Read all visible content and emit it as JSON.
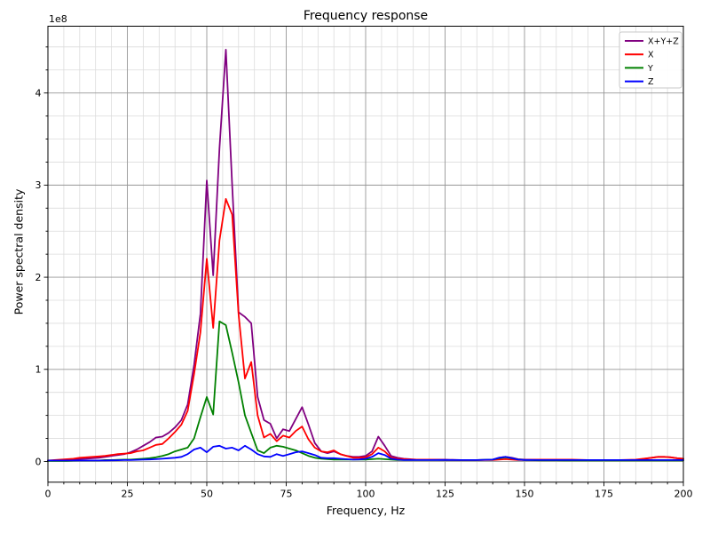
{
  "figure": {
    "background": "#ffffff",
    "text_color": "#000000",
    "spine_color": "#000000",
    "grid_major_color": "#969696",
    "grid_minor_color": "#dcdcdc"
  },
  "chart_data": {
    "type": "line",
    "title": "Frequency response",
    "xlabel": "Frequency, Hz",
    "ylabel": "Power spectral density",
    "offset_label": "1e8",
    "value_scale": 100000000,
    "xlim": [
      0,
      200
    ],
    "ylim_scaled": [
      -0.225,
      4.725
    ],
    "xticks": [
      0,
      25,
      50,
      75,
      100,
      125,
      150,
      175,
      200
    ],
    "yticks": [
      0,
      1,
      2,
      3,
      4
    ],
    "x_minor_step": 5,
    "y_minor_step": 0.25,
    "grid": true,
    "legend_position": "upper right",
    "x": [
      0,
      2,
      4,
      6,
      8,
      10,
      12,
      14,
      16,
      18,
      20,
      22,
      24,
      26,
      28,
      30,
      32,
      34,
      36,
      38,
      40,
      42,
      44,
      46,
      48,
      50,
      52,
      54,
      56,
      58,
      60,
      62,
      64,
      66,
      68,
      70,
      72,
      74,
      76,
      78,
      80,
      82,
      84,
      86,
      88,
      90,
      92,
      94,
      96,
      98,
      100,
      102,
      104,
      106,
      108,
      110,
      112,
      114,
      116,
      118,
      120,
      125,
      130,
      135,
      140,
      142,
      144,
      146,
      148,
      150,
      155,
      160,
      165,
      170,
      175,
      180,
      185,
      190,
      192,
      194,
      196,
      198,
      200
    ],
    "series": [
      {
        "name": "X+Y+Z",
        "color": "#800080",
        "values_1e8": [
          0.01,
          0.01,
          0.012,
          0.015,
          0.02,
          0.028,
          0.03,
          0.035,
          0.04,
          0.05,
          0.06,
          0.07,
          0.08,
          0.1,
          0.13,
          0.17,
          0.21,
          0.26,
          0.27,
          0.31,
          0.37,
          0.45,
          0.62,
          1.05,
          1.6,
          3.05,
          2.02,
          3.4,
          4.47,
          3.0,
          1.62,
          1.57,
          1.5,
          0.7,
          0.45,
          0.41,
          0.25,
          0.35,
          0.33,
          0.46,
          0.59,
          0.4,
          0.2,
          0.11,
          0.09,
          0.11,
          0.08,
          0.06,
          0.05,
          0.05,
          0.06,
          0.11,
          0.27,
          0.17,
          0.06,
          0.04,
          0.03,
          0.025,
          0.02,
          0.02,
          0.02,
          0.02,
          0.015,
          0.015,
          0.02,
          0.04,
          0.05,
          0.04,
          0.025,
          0.02,
          0.02,
          0.02,
          0.015,
          0.015,
          0.015,
          0.015,
          0.015,
          0.04,
          0.05,
          0.05,
          0.045,
          0.035,
          0.03
        ]
      },
      {
        "name": "X",
        "color": "#ff0000",
        "values_1e8": [
          0.01,
          0.015,
          0.02,
          0.025,
          0.03,
          0.04,
          0.045,
          0.05,
          0.055,
          0.06,
          0.07,
          0.08,
          0.085,
          0.09,
          0.11,
          0.12,
          0.15,
          0.18,
          0.19,
          0.25,
          0.32,
          0.4,
          0.55,
          0.95,
          1.4,
          2.2,
          1.45,
          2.4,
          2.85,
          2.68,
          1.6,
          0.9,
          1.08,
          0.5,
          0.26,
          0.3,
          0.22,
          0.28,
          0.26,
          0.33,
          0.38,
          0.24,
          0.15,
          0.11,
          0.1,
          0.12,
          0.08,
          0.06,
          0.04,
          0.04,
          0.045,
          0.08,
          0.15,
          0.11,
          0.04,
          0.03,
          0.025,
          0.02,
          0.02,
          0.02,
          0.02,
          0.015,
          0.015,
          0.015,
          0.015,
          0.02,
          0.025,
          0.02,
          0.015,
          0.015,
          0.02,
          0.02,
          0.02,
          0.015,
          0.015,
          0.015,
          0.02,
          0.04,
          0.05,
          0.05,
          0.045,
          0.035,
          0.03
        ]
      },
      {
        "name": "Y",
        "color": "#008000",
        "values_1e8": [
          0.005,
          0.005,
          0.005,
          0.005,
          0.008,
          0.01,
          0.01,
          0.01,
          0.01,
          0.015,
          0.015,
          0.018,
          0.02,
          0.02,
          0.025,
          0.03,
          0.035,
          0.045,
          0.06,
          0.08,
          0.11,
          0.13,
          0.15,
          0.25,
          0.48,
          0.7,
          0.51,
          1.52,
          1.48,
          1.18,
          0.86,
          0.5,
          0.31,
          0.12,
          0.09,
          0.15,
          0.17,
          0.16,
          0.14,
          0.12,
          0.09,
          0.06,
          0.04,
          0.03,
          0.025,
          0.02,
          0.02,
          0.02,
          0.02,
          0.02,
          0.02,
          0.025,
          0.03,
          0.025,
          0.02,
          0.015,
          0.015,
          0.015,
          0.015,
          0.015,
          0.015,
          0.015,
          0.015,
          0.015,
          0.02,
          0.035,
          0.045,
          0.035,
          0.02,
          0.015,
          0.012,
          0.012,
          0.01,
          0.01,
          0.01,
          0.01,
          0.01,
          0.01,
          0.01,
          0.01,
          0.01,
          0.01,
          0.01
        ]
      },
      {
        "name": "Z",
        "color": "#0000ff",
        "values_1e8": [
          0.01,
          0.01,
          0.01,
          0.01,
          0.01,
          0.01,
          0.01,
          0.01,
          0.01,
          0.01,
          0.012,
          0.013,
          0.015,
          0.015,
          0.018,
          0.02,
          0.022,
          0.025,
          0.03,
          0.035,
          0.04,
          0.05,
          0.08,
          0.13,
          0.15,
          0.1,
          0.16,
          0.17,
          0.14,
          0.15,
          0.12,
          0.17,
          0.13,
          0.08,
          0.055,
          0.05,
          0.08,
          0.06,
          0.08,
          0.1,
          0.11,
          0.09,
          0.07,
          0.04,
          0.035,
          0.035,
          0.03,
          0.025,
          0.02,
          0.022,
          0.03,
          0.05,
          0.09,
          0.07,
          0.03,
          0.02,
          0.015,
          0.015,
          0.015,
          0.015,
          0.015,
          0.015,
          0.015,
          0.015,
          0.02,
          0.04,
          0.05,
          0.035,
          0.02,
          0.015,
          0.015,
          0.015,
          0.015,
          0.015,
          0.015,
          0.015,
          0.015,
          0.015,
          0.015,
          0.015,
          0.015,
          0.015,
          0.015
        ]
      }
    ]
  }
}
